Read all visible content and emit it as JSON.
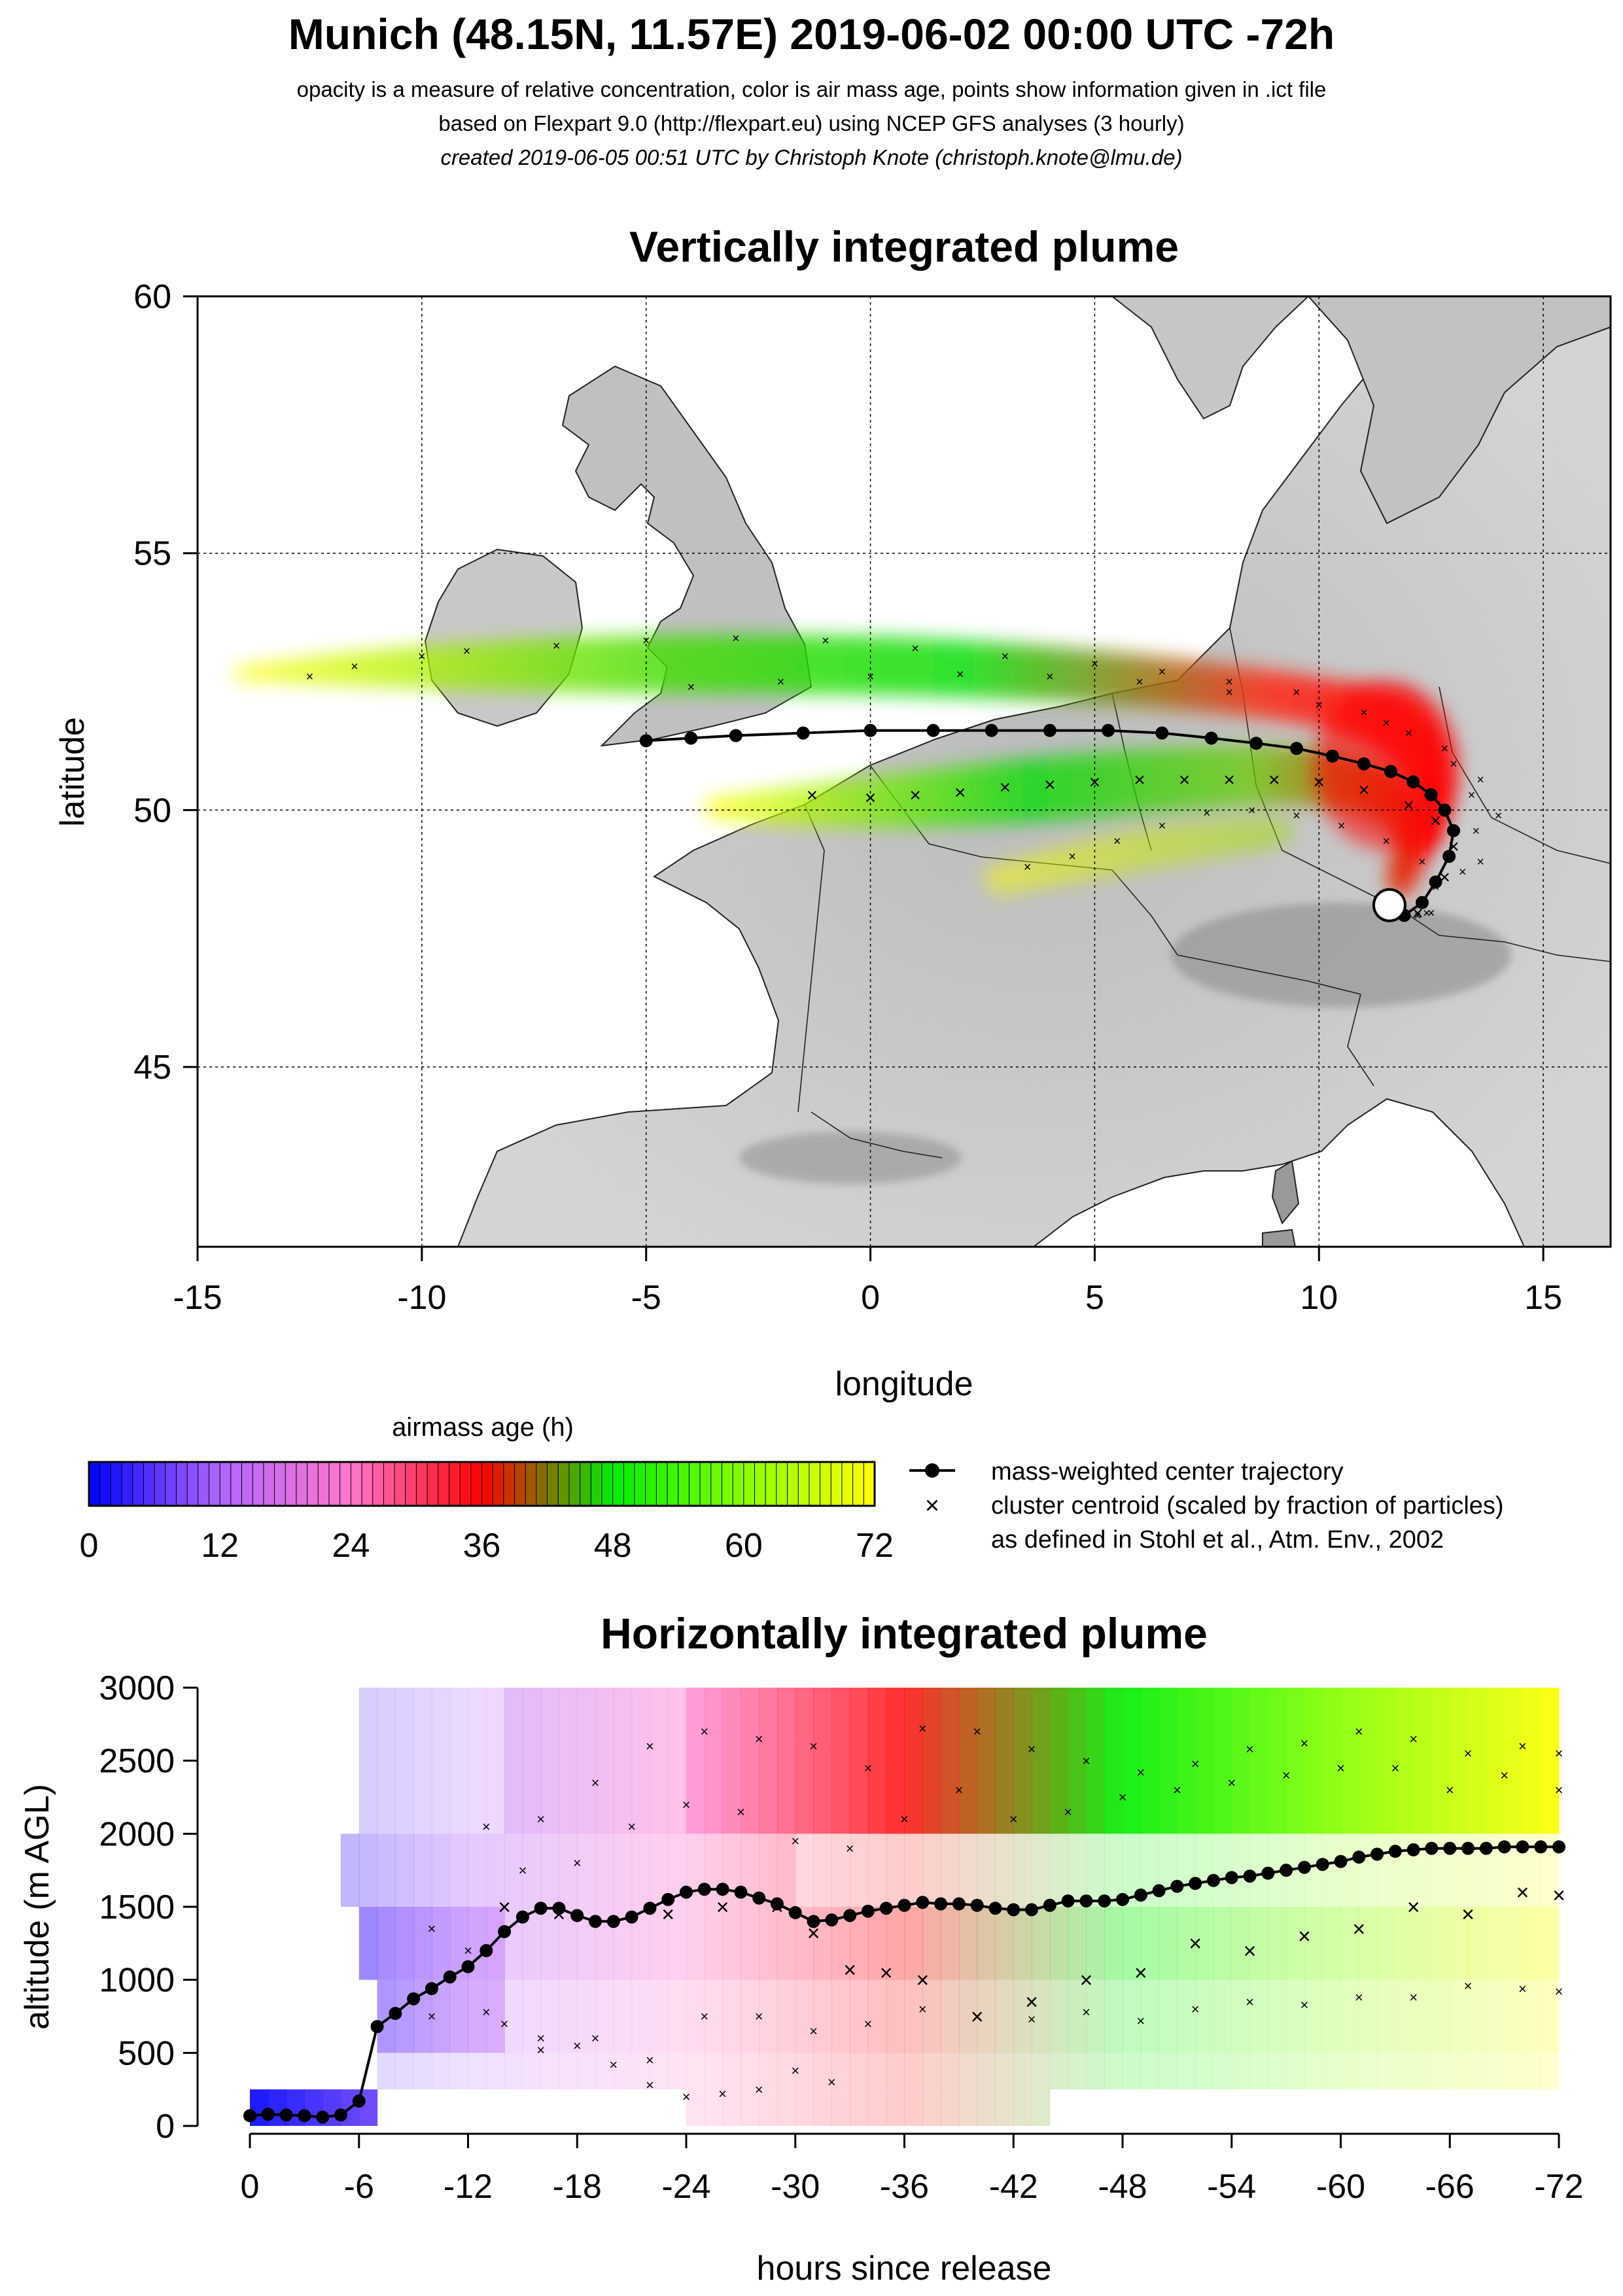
{
  "header": {
    "title": "Munich (48.15N, 11.57E) 2019-06-02 00:00 UTC -72h",
    "subtitle_1": "opacity is a measure of relative concentration, color is air mass age, points show information given in .ict file",
    "subtitle_2": "based on Flexpart 9.0 (http://flexpart.eu) using NCEP GFS analyses (3 hourly)",
    "subtitle_3": "created 2019-06-05 00:51 UTC by Christoph Knote (christoph.knote@lmu.de)"
  },
  "colorbar": {
    "title": "airmass age (h)",
    "ticks": [
      "0",
      "12",
      "24",
      "36",
      "48",
      "60",
      "72"
    ],
    "colors": [
      "#0000ff",
      "#ff88dd",
      "#ff0000",
      "#00ee00",
      "#ffff00"
    ]
  },
  "legend": {
    "line1": "mass-weighted center trajectory",
    "line2": "cluster centroid (scaled by fraction of particles)",
    "line3": "as defined in Stohl et al., Atm. Env., 2002"
  },
  "chart_data": [
    {
      "type": "scatter",
      "title": "Vertically integrated plume",
      "xlabel": "longitude",
      "ylabel": "latitude",
      "xlim": [
        -15,
        16.5
      ],
      "ylim": [
        41.5,
        60
      ],
      "xticks": [
        "-15",
        "-10",
        "-5",
        "0",
        "5",
        "10",
        "15"
      ],
      "yticks": [
        "45",
        "50",
        "55",
        "60"
      ],
      "grid": true,
      "release_point": {
        "lon": 11.57,
        "lat": 48.15
      },
      "center_trajectory": {
        "lon": [
          11.9,
          12.3,
          12.6,
          12.9,
          13.0,
          12.8,
          12.5,
          12.1,
          11.6,
          11.0,
          10.3,
          9.5,
          8.6,
          7.6,
          6.5,
          5.3,
          4.0,
          2.7,
          1.4,
          0.0,
          -1.5,
          -3.0,
          -4.0,
          -5.0
        ],
        "lat": [
          47.95,
          48.2,
          48.6,
          49.1,
          49.6,
          50.0,
          50.3,
          50.55,
          50.75,
          50.9,
          51.05,
          51.2,
          51.3,
          51.4,
          51.5,
          51.55,
          51.55,
          51.55,
          51.55,
          51.55,
          51.5,
          51.45,
          51.4,
          51.35
        ]
      },
      "cluster_tracks": [
        {
          "lon": [
            12.4,
            13.2,
            13.5,
            13.4,
            13.0,
            12.0,
            11.0,
            9.5,
            8.0,
            6.5,
            5.0,
            3.0,
            1.0,
            -1.0,
            -3.0,
            -5.0,
            -7.0,
            -9.0,
            -10.0,
            -11.5,
            -12.5
          ],
          "lat": [
            48.0,
            48.8,
            49.6,
            50.3,
            50.9,
            51.5,
            51.9,
            52.3,
            52.5,
            52.7,
            52.85,
            53.0,
            53.15,
            53.3,
            53.35,
            53.3,
            53.2,
            53.1,
            53.0,
            52.8,
            52.6
          ]
        },
        {
          "lon": [
            12.2,
            12.8,
            13.0,
            12.6,
            12.0,
            11.0,
            10.0,
            9.0,
            8.0,
            7.0,
            6.0,
            5.0,
            4.0,
            3.0,
            2.0,
            1.0,
            0.0,
            -1.3
          ],
          "lat": [
            48.0,
            48.7,
            49.3,
            49.8,
            50.1,
            50.4,
            50.55,
            50.6,
            50.6,
            50.6,
            50.6,
            50.55,
            50.5,
            50.45,
            50.35,
            50.3,
            50.25,
            50.3
          ]
        },
        {
          "lon": [
            12.2,
            12.6,
            12.3,
            11.5,
            10.5,
            9.5,
            8.5,
            7.5,
            6.5,
            5.5,
            4.5,
            3.5
          ],
          "lat": [
            47.95,
            48.5,
            49.0,
            49.4,
            49.7,
            49.9,
            50.0,
            49.95,
            49.7,
            49.4,
            49.1,
            48.9
          ]
        },
        {
          "lon": [
            12.5,
            13.6,
            14.0,
            13.6,
            12.8,
            11.5,
            10.0,
            8.0,
            6.0,
            4.0,
            2.0,
            0.0,
            -2.0,
            -4.0
          ],
          "lat": [
            48.0,
            49.0,
            49.9,
            50.6,
            51.2,
            51.7,
            52.05,
            52.3,
            52.5,
            52.6,
            52.65,
            52.6,
            52.5,
            52.4
          ]
        }
      ],
      "plume_age_colors": {
        "near": "#ff0000",
        "mid": "#00dd00",
        "far": "#ffff00"
      }
    },
    {
      "type": "heatmap",
      "title": "Horizontally integrated plume",
      "xlabel": "hours since release",
      "ylabel": "altitude (m AGL)",
      "xlim": [
        0,
        -72
      ],
      "ylim": [
        0,
        3000
      ],
      "xticks": [
        "0",
        "-6",
        "-12",
        "-18",
        "-24",
        "-30",
        "-36",
        "-42",
        "-48",
        "-54",
        "-60",
        "-66",
        "-72"
      ],
      "yticks": [
        "0",
        "500",
        "1000",
        "1500",
        "2000",
        "2500",
        "3000"
      ],
      "center_trajectory": {
        "hours": [
          0,
          -1,
          -2,
          -3,
          -4,
          -5,
          -6,
          -7,
          -8,
          -9,
          -10,
          -11,
          -12,
          -13,
          -14,
          -15,
          -16,
          -17,
          -18,
          -19,
          -20,
          -21,
          -22,
          -23,
          -24,
          -25,
          -26,
          -27,
          -28,
          -29,
          -30,
          -31,
          -32,
          -33,
          -34,
          -35,
          -36,
          -37,
          -38,
          -39,
          -40,
          -41,
          -42,
          -43,
          -44,
          -45,
          -46,
          -47,
          -48,
          -49,
          -50,
          -51,
          -52,
          -53,
          -54,
          -55,
          -56,
          -57,
          -58,
          -59,
          -60,
          -61,
          -62,
          -63,
          -64,
          -65,
          -66,
          -67,
          -68,
          -69,
          -70,
          -71,
          -72
        ],
        "altitude": [
          70,
          80,
          75,
          70,
          60,
          75,
          170,
          680,
          770,
          870,
          940,
          1020,
          1090,
          1200,
          1330,
          1430,
          1490,
          1490,
          1440,
          1400,
          1400,
          1430,
          1490,
          1550,
          1600,
          1620,
          1620,
          1600,
          1560,
          1520,
          1460,
          1400,
          1410,
          1440,
          1470,
          1490,
          1510,
          1530,
          1520,
          1520,
          1510,
          1490,
          1480,
          1480,
          1510,
          1540,
          1540,
          1540,
          1550,
          1580,
          1610,
          1640,
          1660,
          1680,
          1700,
          1710,
          1730,
          1750,
          1770,
          1790,
          1810,
          1840,
          1860,
          1880,
          1890,
          1900,
          1900,
          1900,
          1900,
          1910,
          1910,
          1910,
          1910
        ]
      },
      "cluster_tracks": [
        {
          "hours": [
            -13,
            -16,
            -19,
            -22,
            -25,
            -28,
            -31,
            -34,
            -37,
            -40,
            -43,
            -46,
            -49,
            -52,
            -55,
            -58,
            -61,
            -64,
            -67,
            -70,
            -72
          ],
          "altitude": [
            2050,
            2100,
            2350,
            2600,
            2700,
            2650,
            2600,
            2450,
            2720,
            2700,
            2580,
            2500,
            2420,
            2480,
            2580,
            2620,
            2700,
            2650,
            2550,
            2600,
            2550
          ]
        },
        {
          "hours": [
            -15,
            -18,
            -21,
            -24,
            -27,
            -30,
            -33,
            -36,
            -39,
            -42,
            -45,
            -48,
            -51,
            -54,
            -57,
            -60,
            -63,
            -66,
            -69,
            -72
          ],
          "altitude": [
            1750,
            1800,
            2050,
            2200,
            2150,
            1950,
            1900,
            2100,
            2300,
            2100,
            2150,
            2250,
            2300,
            2350,
            2400,
            2450,
            2450,
            2300,
            2400,
            2300
          ]
        },
        {
          "hours": [
            -14,
            -17,
            -20,
            -23,
            -26,
            -29,
            -31,
            -33,
            -35,
            -37,
            -40,
            -43,
            -46,
            -49,
            -52,
            -55,
            -58,
            -61,
            -64,
            -67,
            -70,
            -72
          ],
          "altitude": [
            1500,
            1450,
            1400,
            1450,
            1500,
            1500,
            1320,
            1070,
            1050,
            1000,
            750,
            850,
            1000,
            1050,
            1250,
            1200,
            1300,
            1350,
            1500,
            1450,
            1600,
            1580
          ]
        },
        {
          "hours": [
            -10,
            -13,
            -16,
            -19,
            -22,
            -25,
            -28,
            -31,
            -34,
            -37,
            -40,
            -43,
            -46,
            -49,
            -52,
            -55,
            -58,
            -61,
            -64,
            -67,
            -70,
            -72
          ],
          "altitude": [
            750,
            780,
            520,
            600,
            450,
            750,
            750,
            650,
            700,
            800,
            750,
            730,
            780,
            720,
            800,
            850,
            830,
            880,
            880,
            960,
            940,
            920
          ]
        },
        {
          "hours": [
            -10,
            -12,
            -14,
            -16,
            -18,
            -20,
            -22,
            -24,
            -26,
            -28,
            -30,
            -32
          ],
          "altitude": [
            1350,
            1200,
            700,
            600,
            550,
            420,
            280,
            200,
            220,
            250,
            380,
            300
          ]
        }
      ],
      "cell_color_stops": {
        "0": "#0000ff",
        "12": "#b066ff",
        "24": "#ff77cc",
        "36": "#ff0000",
        "48": "#00ee00",
        "60": "#88ff00",
        "72": "#ffff00"
      }
    }
  ]
}
